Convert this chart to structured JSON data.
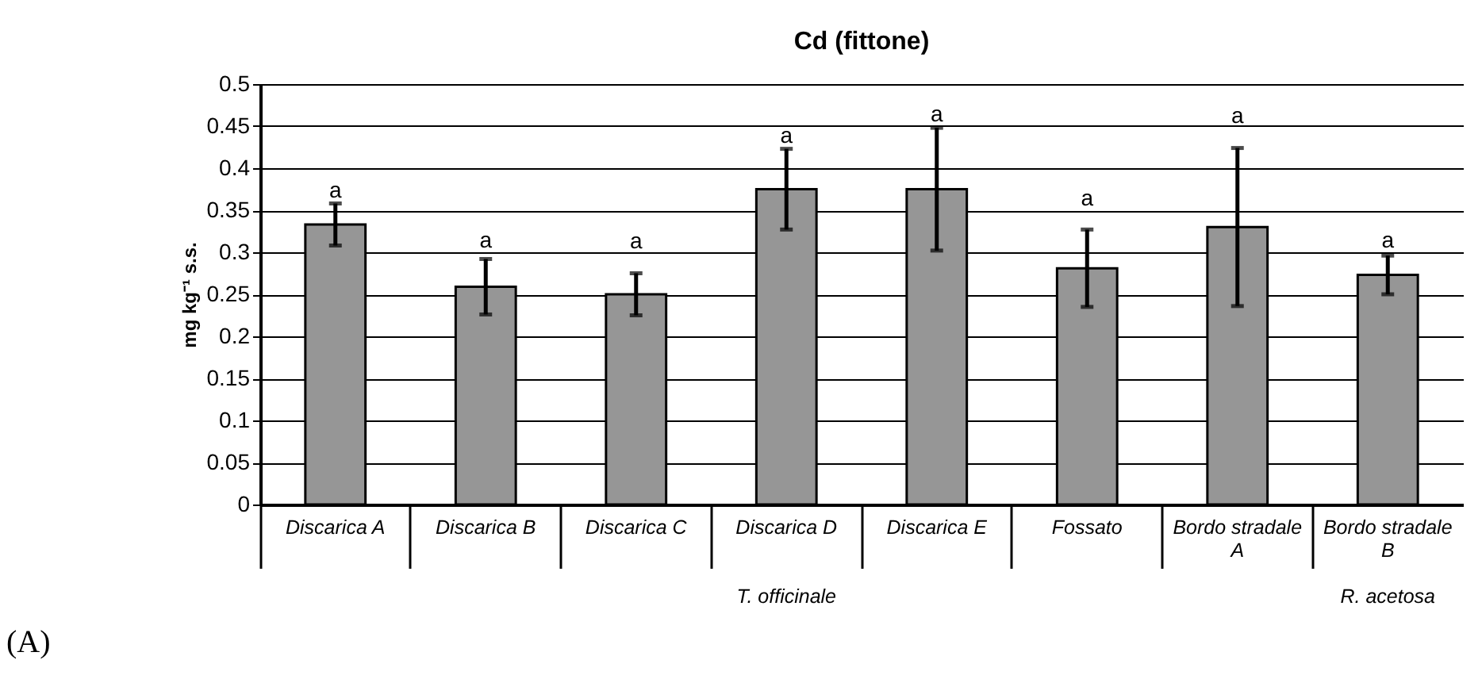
{
  "chart_data": {
    "type": "bar",
    "title": "Cd (fittone)",
    "ylabel": "mg kg⁻¹ s.s.",
    "categories": [
      "Discarica A",
      "Discarica B",
      "Discarica C",
      "Discarica D",
      "Discarica E",
      "Fossato",
      "Bordo stradale A",
      "Bordo stradale B"
    ],
    "values": [
      0.333,
      0.259,
      0.25,
      0.375,
      0.375,
      0.281,
      0.33,
      0.273
    ],
    "errors": [
      0.025,
      0.033,
      0.025,
      0.048,
      0.073,
      0.046,
      0.094,
      0.023
    ],
    "color": "#969696",
    "ylim": [
      0,
      0.5
    ],
    "yticks": [
      0,
      0.05,
      0.1,
      0.15,
      0.2,
      0.25,
      0.3,
      0.35,
      0.4,
      0.45,
      0.5
    ],
    "grid": "y",
    "annotations": [
      {
        "text": "a",
        "x": "Discarica A",
        "y": 0.358
      },
      {
        "text": "a",
        "x": "Discarica B",
        "y": 0.292
      },
      {
        "text": "a",
        "x": "Discarica C",
        "y": 0.275
      },
      {
        "text": "a",
        "x": "Discarica D",
        "y": 0.423
      },
      {
        "text": "a",
        "x": "Discarica E",
        "y": 0.448
      },
      {
        "text": "a",
        "x": "Fossato",
        "y": 0.327
      },
      {
        "text": "a",
        "x": "Bordo stradale A",
        "y": 0.424
      },
      {
        "text": "a",
        "x": "Bordo stradale B",
        "y": 0.296
      },
      "T. officinale",
      "R. acetosa",
      "(A)"
    ]
  }
}
